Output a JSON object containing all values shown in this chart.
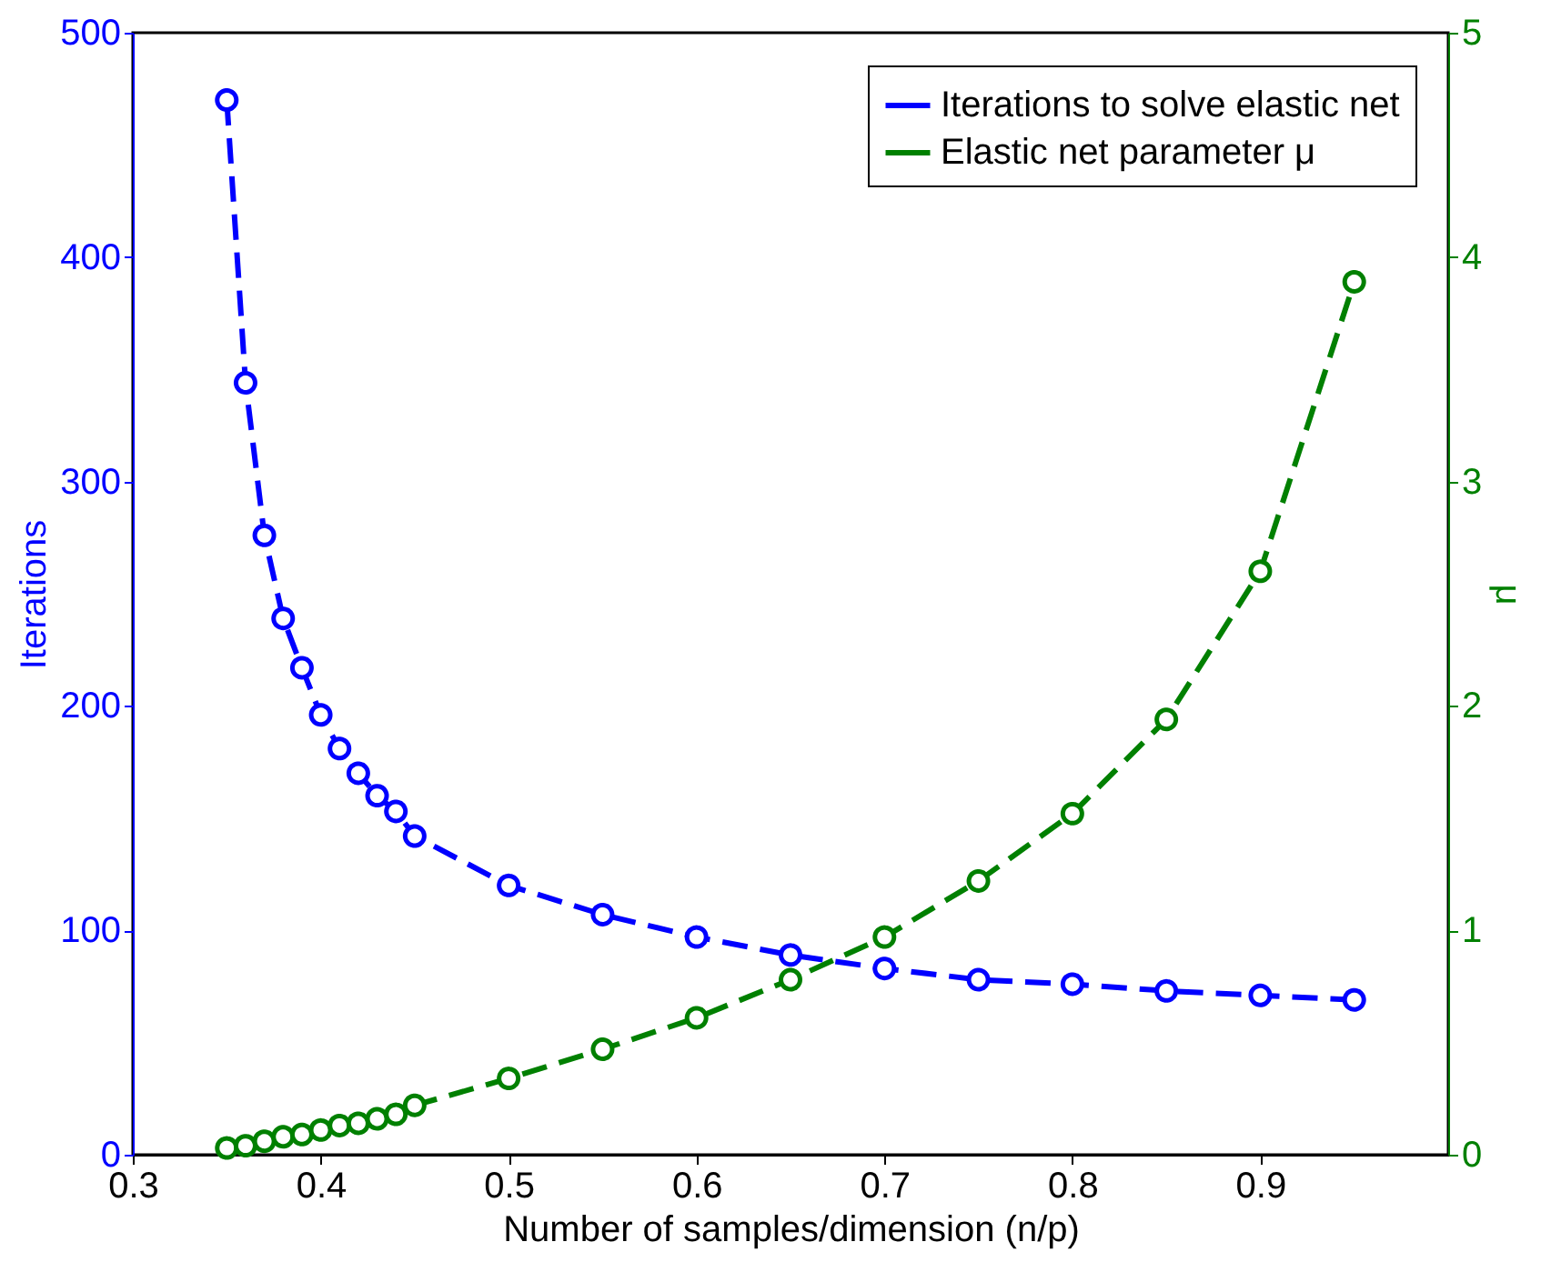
{
  "chart_data": {
    "type": "line",
    "xlabel": "Number of samples/dimension (n/p)",
    "ylabel": "Iterations",
    "y2label": "μ",
    "x": [
      0.35,
      0.36,
      0.37,
      0.38,
      0.39,
      0.4,
      0.41,
      0.42,
      0.43,
      0.44,
      0.45,
      0.5,
      0.55,
      0.6,
      0.65,
      0.7,
      0.75,
      0.8,
      0.85,
      0.9,
      0.95
    ],
    "series": [
      {
        "name": "Iterations to solve elastic net",
        "color": "#0000ff",
        "values": [
          470,
          344,
          276,
          239,
          217,
          196,
          181,
          170,
          160,
          153,
          142,
          120,
          107,
          97,
          89,
          83,
          78,
          76,
          73,
          71,
          69
        ]
      },
      {
        "name": "Elastic net parameter μ",
        "color": "#008000",
        "axis": "y2",
        "values": [
          0.03,
          0.04,
          0.06,
          0.08,
          0.09,
          0.11,
          0.13,
          0.14,
          0.16,
          0.18,
          0.22,
          0.34,
          0.47,
          0.61,
          0.78,
          0.97,
          1.22,
          1.52,
          1.94,
          2.6,
          3.89
        ]
      }
    ],
    "xlim": [
      0.3,
      1.0
    ],
    "xticks": [
      0.3,
      0.4,
      0.5,
      0.6,
      0.7,
      0.8,
      0.9
    ],
    "ylim": [
      0,
      500
    ],
    "yticks": [
      0,
      100,
      200,
      300,
      400,
      500
    ],
    "y2lim": [
      0,
      5
    ],
    "y2ticks": [
      0,
      1,
      2,
      3,
      4,
      5
    ],
    "grid": false,
    "legend": "top right",
    "marker": "circle",
    "line_style": "dashed"
  }
}
